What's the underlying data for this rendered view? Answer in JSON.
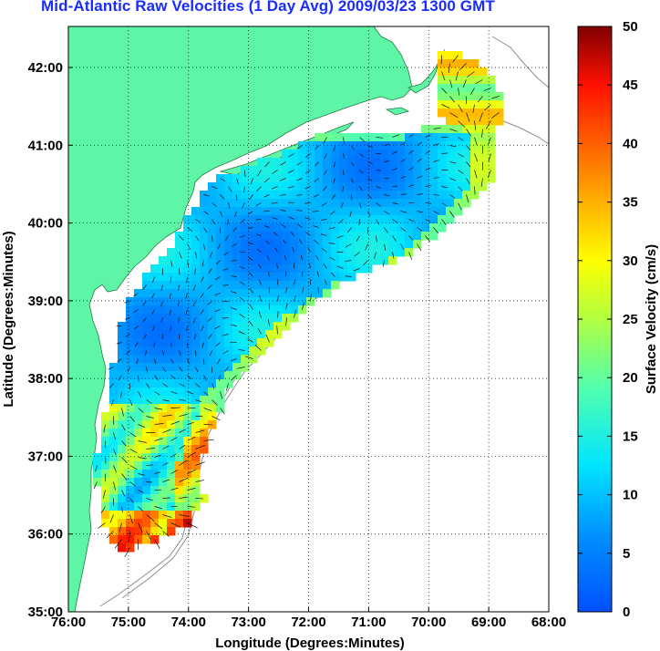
{
  "title": "Mid-Atlantic Raw Velocities (1 Day Avg) 2009/03/23 1300 GMT",
  "map": {
    "xlabel": "Longitude (Degrees:Minutes)",
    "ylabel": "Latitude (Degrees:Minutes)",
    "x_ticks": [
      "76:00",
      "75:00",
      "74:00",
      "73:00",
      "72:00",
      "71:00",
      "70:00",
      "69:00",
      "68:00"
    ],
    "y_ticks": [
      "42:00",
      "41:00",
      "40:00",
      "39:00",
      "38:00",
      "37:00",
      "36:00",
      "35:00"
    ],
    "land_color": "#5ef5a6",
    "grid": "dotted"
  },
  "colorbar": {
    "label": "Surface Velocity (cm/s)",
    "ticks": [
      "50",
      "45",
      "40",
      "35",
      "30",
      "25",
      "20",
      "15",
      "10",
      "5",
      "0"
    ],
    "range": [
      0,
      50
    ],
    "colormap": "jet"
  }
}
